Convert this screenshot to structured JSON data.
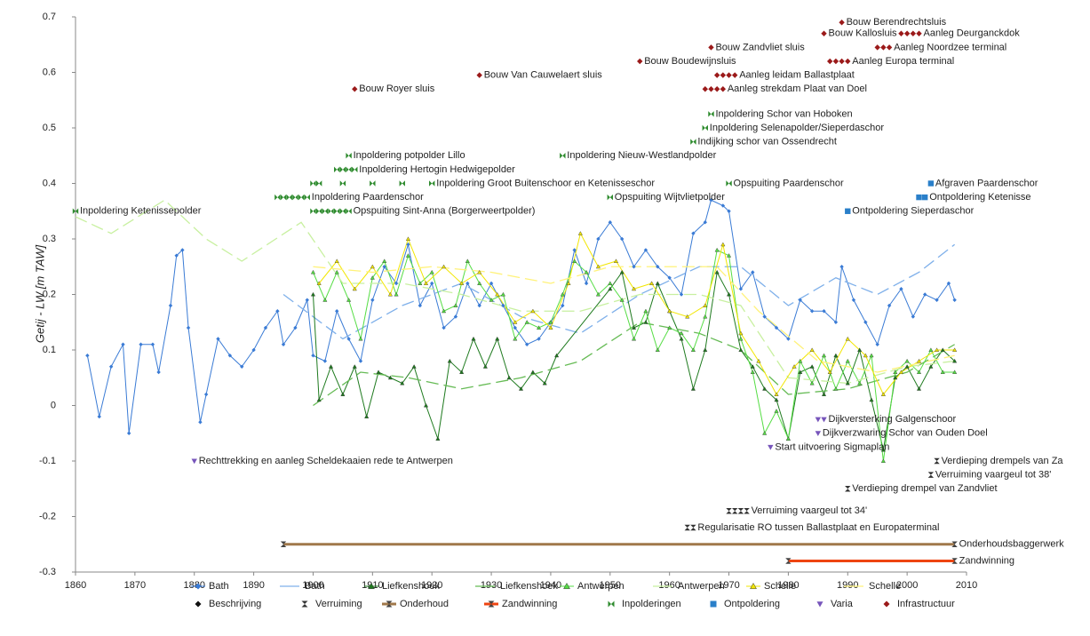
{
  "chart_data": {
    "type": "line",
    "y_label": "Getij - LW [m TAW]",
    "xlim": [
      1860,
      2010
    ],
    "xticks": [
      1860,
      1870,
      1880,
      1890,
      1900,
      1910,
      1920,
      1930,
      1940,
      1950,
      1960,
      1970,
      1980,
      1990,
      2000,
      2010
    ],
    "ylim": [
      -0.3,
      0.7
    ],
    "yticks": [
      -0.3,
      -0.2,
      -0.1,
      0,
      0.1,
      0.2,
      0.3,
      0.4,
      0.5,
      0.6,
      0.7
    ],
    "series": [
      {
        "name": "Bath",
        "color": "#3a7bd5",
        "marker": "diamond",
        "style": "points",
        "x": [
          1862,
          1864,
          1866,
          1868,
          1869,
          1871,
          1873,
          1874,
          1876,
          1877,
          1878,
          1879,
          1881,
          1882,
          1884,
          1886,
          1888,
          1890,
          1892,
          1894,
          1895,
          1897,
          1899,
          1900,
          1902,
          1904,
          1906,
          1908,
          1910,
          1912,
          1914,
          1916,
          1918,
          1920,
          1922,
          1924,
          1926,
          1928,
          1930,
          1932,
          1934,
          1936,
          1938,
          1940,
          1942,
          1944,
          1946,
          1948,
          1950,
          1952,
          1954,
          1956,
          1958,
          1960,
          1962,
          1964,
          1966,
          1967,
          1969,
          1970,
          1972,
          1974,
          1976,
          1978,
          1980,
          1982,
          1984,
          1986,
          1988,
          1989,
          1991,
          1993,
          1995,
          1997,
          1999,
          2001,
          2003,
          2005,
          2007,
          2008
        ],
        "values": [
          0.09,
          -0.02,
          0.07,
          0.11,
          -0.05,
          0.11,
          0.11,
          0.06,
          0.18,
          0.27,
          0.28,
          0.14,
          -0.03,
          0.02,
          0.12,
          0.09,
          0.07,
          0.1,
          0.14,
          0.17,
          0.11,
          0.14,
          0.19,
          0.09,
          0.08,
          0.17,
          0.12,
          0.08,
          0.19,
          0.25,
          0.22,
          0.29,
          0.18,
          0.22,
          0.14,
          0.16,
          0.22,
          0.18,
          0.22,
          0.18,
          0.14,
          0.11,
          0.12,
          0.15,
          0.18,
          0.28,
          0.22,
          0.3,
          0.33,
          0.3,
          0.25,
          0.28,
          0.25,
          0.23,
          0.2,
          0.31,
          0.33,
          0.37,
          0.36,
          0.35,
          0.21,
          0.24,
          0.16,
          0.14,
          0.12,
          0.19,
          0.17,
          0.17,
          0.15,
          0.25,
          0.19,
          0.15,
          0.11,
          0.18,
          0.21,
          0.16,
          0.2,
          0.19,
          0.22,
          0.19
        ]
      },
      {
        "name": "Bath",
        "color": "#7fb0ea",
        "style": "trend",
        "x": [
          1895,
          1905,
          1915,
          1925,
          1935,
          1945,
          1955,
          1965,
          1972,
          1980,
          1988,
          1995,
          2002,
          2008
        ],
        "values": [
          0.2,
          0.12,
          0.18,
          0.22,
          0.16,
          0.13,
          0.2,
          0.25,
          0.25,
          0.18,
          0.23,
          0.2,
          0.24,
          0.29
        ]
      },
      {
        "name": "Liefkenshoek",
        "color": "#1e7a1e",
        "marker": "triangle",
        "style": "points",
        "x": [
          1900,
          1901,
          1903,
          1905,
          1907,
          1909,
          1911,
          1913,
          1915,
          1917,
          1919,
          1921,
          1923,
          1925,
          1927,
          1929,
          1931,
          1933,
          1935,
          1937,
          1939,
          1941,
          1950,
          1952,
          1954,
          1956,
          1958,
          1960,
          1962,
          1964,
          1966,
          1968,
          1970,
          1972,
          1974,
          1976,
          1978,
          1980,
          1982,
          1984,
          1986,
          1988,
          1990,
          1992,
          1994,
          1996,
          1998,
          2000,
          2002,
          2004,
          2006,
          2008
        ],
        "values": [
          0.2,
          0.01,
          0.07,
          0.02,
          0.07,
          -0.02,
          0.06,
          0.05,
          0.04,
          0.07,
          0.0,
          -0.06,
          0.08,
          0.06,
          0.12,
          0.07,
          0.12,
          0.05,
          0.03,
          0.06,
          0.04,
          0.09,
          0.21,
          0.24,
          0.14,
          0.15,
          0.22,
          0.17,
          0.12,
          0.03,
          0.1,
          0.24,
          0.2,
          0.1,
          0.07,
          0.03,
          0.01,
          -0.06,
          0.06,
          0.07,
          0.02,
          0.09,
          0.04,
          0.1,
          0.01,
          -0.08,
          0.05,
          0.07,
          0.03,
          0.07,
          0.1,
          0.08
        ]
      },
      {
        "name": "Liefkenshoek",
        "color": "#66bb55",
        "style": "trend",
        "x": [
          1900,
          1908,
          1916,
          1925,
          1935,
          1945,
          1955,
          1965,
          1972,
          1980,
          1990,
          2000,
          2008
        ],
        "values": [
          0.0,
          0.06,
          0.05,
          0.03,
          0.05,
          0.08,
          0.15,
          0.13,
          0.1,
          0.02,
          0.03,
          0.06,
          0.11
        ]
      },
      {
        "name": "Antwerpen",
        "color": "#55dd44",
        "marker": "triangle",
        "style": "points",
        "x": [
          1900,
          1902,
          1904,
          1906,
          1908,
          1910,
          1912,
          1914,
          1916,
          1918,
          1920,
          1922,
          1924,
          1926,
          1928,
          1930,
          1932,
          1934,
          1936,
          1938,
          1940,
          1942,
          1944,
          1946,
          1948,
          1950,
          1952,
          1954,
          1956,
          1958,
          1960,
          1962,
          1964,
          1966,
          1968,
          1970,
          1972,
          1974,
          1976,
          1978,
          1980,
          1982,
          1984,
          1986,
          1988,
          1990,
          1992,
          1994,
          1996,
          1998,
          2000,
          2002,
          2004,
          2006,
          2008
        ],
        "values": [
          0.24,
          0.19,
          0.24,
          0.19,
          0.12,
          0.23,
          0.26,
          0.2,
          0.27,
          0.22,
          0.24,
          0.17,
          0.18,
          0.26,
          0.22,
          0.19,
          0.2,
          0.12,
          0.15,
          0.14,
          0.15,
          0.2,
          0.26,
          0.24,
          0.2,
          0.22,
          0.19,
          0.12,
          0.17,
          0.1,
          0.14,
          0.13,
          0.1,
          0.16,
          0.28,
          0.27,
          0.12,
          0.06,
          -0.05,
          -0.01,
          -0.06,
          0.08,
          0.04,
          0.09,
          0.03,
          0.08,
          0.04,
          0.09,
          -0.1,
          0.06,
          0.08,
          0.06,
          0.1,
          0.06,
          0.06
        ]
      },
      {
        "name": "Antwerpen",
        "color": "#c8f0a0",
        "style": "trend",
        "x": [
          1860,
          1866,
          1875,
          1882,
          1888,
          1898,
          1905,
          1915,
          1925,
          1935,
          1945,
          1955,
          1965,
          1972,
          1980,
          1990,
          2000,
          2008
        ],
        "values": [
          0.34,
          0.31,
          0.37,
          0.3,
          0.26,
          0.33,
          0.22,
          0.22,
          0.2,
          0.17,
          0.17,
          0.2,
          0.2,
          0.18,
          0.05,
          0.04,
          0.07,
          0.08
        ]
      },
      {
        "name": "Schelle",
        "color": "#f2e600",
        "marker": "triangle",
        "style": "points",
        "x": [
          1901,
          1904,
          1907,
          1910,
          1913,
          1916,
          1919,
          1922,
          1925,
          1928,
          1931,
          1934,
          1937,
          1940,
          1943,
          1945,
          1948,
          1951,
          1954,
          1957,
          1960,
          1963,
          1966,
          1969,
          1972,
          1975,
          1978,
          1981,
          1984,
          1987,
          1990,
          1993,
          1996,
          1999,
          2002,
          2005,
          2008
        ],
        "values": [
          0.22,
          0.26,
          0.21,
          0.25,
          0.2,
          0.3,
          0.22,
          0.25,
          0.22,
          0.24,
          0.2,
          0.15,
          0.17,
          0.14,
          0.22,
          0.31,
          0.25,
          0.26,
          0.21,
          0.22,
          0.17,
          0.16,
          0.18,
          0.29,
          0.13,
          0.08,
          0.02,
          0.07,
          0.1,
          0.06,
          0.12,
          0.09,
          0.02,
          0.06,
          0.08,
          0.1,
          0.1
        ]
      },
      {
        "name": "Schelle",
        "color": "#fff27a",
        "style": "trend",
        "x": [
          1900,
          1910,
          1920,
          1930,
          1940,
          1950,
          1960,
          1968,
          1975,
          1985,
          1995,
          2008
        ],
        "values": [
          0.25,
          0.24,
          0.25,
          0.24,
          0.22,
          0.25,
          0.25,
          0.25,
          0.17,
          0.08,
          0.06,
          0.09
        ]
      }
    ],
    "event_groups": [
      {
        "name": "Beschrijving",
        "color": "#111111",
        "marker": "diamond",
        "items": []
      },
      {
        "name": "Verruiming",
        "color": "#333333",
        "marker": "hourglass",
        "items": [
          {
            "label": "Verdieping drempels van Za",
            "x": [
              2005
            ],
            "y": -0.1
          },
          {
            "label": "Verruiming vaargeul tot 38'",
            "x": [
              2004
            ],
            "y": -0.125
          },
          {
            "label": "Verdieping drempel van Zandvliet",
            "x": [
              1990
            ],
            "y": -0.15
          },
          {
            "label": "Verruiming vaargeul tot 34'",
            "x": [
              1970,
              1971,
              1972,
              1973
            ],
            "y": -0.19
          },
          {
            "label": "Regularisatie RO tussen Ballastplaat en Europaterminal",
            "x": [
              1963,
              1964
            ],
            "y": -0.22
          }
        ]
      },
      {
        "name": "Onderhoud",
        "color": "#a0784a",
        "marker": "hourglass",
        "connect": true,
        "items": [
          {
            "label": "Onderhoudsbaggerwerk",
            "x": [
              1895,
              2008
            ],
            "y": -0.25
          }
        ]
      },
      {
        "name": "Zandwinning",
        "color": "#ee4411",
        "marker": "hourglass",
        "connect": true,
        "items": [
          {
            "label": "Zandwinning",
            "x": [
              1980,
              2008
            ],
            "y": -0.28
          }
        ]
      },
      {
        "name": "Inpolderingen",
        "color": "#2e8b2e",
        "marker": "bowtie",
        "items": [
          {
            "label": "Inpoldering Schor van Hoboken",
            "x": [
              1967
            ],
            "y": 0.525
          },
          {
            "label": "Inpoldering Selenapolder/Sieperdaschor",
            "x": [
              1966
            ],
            "y": 0.5
          },
          {
            "label": "Indijking schor van Ossendrecht",
            "x": [
              1964
            ],
            "y": 0.475
          },
          {
            "label": "Inpoldering potpolder Lillo",
            "x": [
              1906
            ],
            "y": 0.45
          },
          {
            "label": "Inpoldering Nieuw-Westlandpolder",
            "x": [
              1942
            ],
            "y": 0.45
          },
          {
            "label": "Inpoldering Hertogin Hedwigepolder",
            "x": [
              1904,
              1905,
              1906,
              1907
            ],
            "y": 0.425
          },
          {
            "label": "Inpoldering Groot Buitenschoor en Ketenisseschor",
            "x": [
              1900,
              1901,
              1905,
              1910,
              1915,
              1920
            ],
            "y": 0.4
          },
          {
            "label": "Opspuiting Paardenschor",
            "x": [
              1970
            ],
            "y": 0.4
          },
          {
            "label": "Inpoldering Paardenschor",
            "x": [
              1894,
              1895,
              1896,
              1897,
              1898,
              1899
            ],
            "y": 0.375
          },
          {
            "label": "Opspuiting Wijtvlietpolder",
            "x": [
              1950
            ],
            "y": 0.375
          },
          {
            "label": "Inpoldering Ketenissepolder",
            "x": [
              1860
            ],
            "y": 0.35
          },
          {
            "label": "Opspuiting Sint-Anna (Borgerweertpolder)",
            "x": [
              1900,
              1901,
              1902,
              1903,
              1904,
              1905,
              1906
            ],
            "y": 0.35
          }
        ]
      },
      {
        "name": "Ontpoldering",
        "color": "#2a7fc9",
        "marker": "square",
        "items": [
          {
            "label": "Afgraven Paardenschor",
            "x": [
              2004
            ],
            "y": 0.4
          },
          {
            "label": "Ontpoldering Ketenisse",
            "x": [
              2002,
              2003
            ],
            "y": 0.375
          },
          {
            "label": "Ontpoldering Sieperdaschor",
            "x": [
              1990
            ],
            "y": 0.35
          }
        ]
      },
      {
        "name": "Varia",
        "color": "#7755bb",
        "marker": "tridown",
        "items": [
          {
            "label": "Dijkversterking Galgenschoor",
            "x": [
              1985,
              1986
            ],
            "y": -0.025
          },
          {
            "label": "Dijkverzwaring Schor van Ouden Doel",
            "x": [
              1985
            ],
            "y": -0.05
          },
          {
            "label": "Start uitvoering Sigmaplan",
            "x": [
              1977
            ],
            "y": -0.075
          },
          {
            "label": "Rechttrekking en aanleg Scheldekaaien rede te Antwerpen",
            "x": [
              1880
            ],
            "y": -0.1
          }
        ]
      },
      {
        "name": "Infrastructuur",
        "color": "#9b1a1a",
        "marker": "diamond",
        "items": [
          {
            "label": "Bouw Berendrechtsluis",
            "x": [
              1989
            ],
            "y": 0.69
          },
          {
            "label": "Bouw Kallosluis",
            "x": [
              1986
            ],
            "y": 0.67
          },
          {
            "label": "Aanleg Deurganckdok",
            "x": [
              1999,
              2000,
              2001,
              2002
            ],
            "y": 0.67
          },
          {
            "label": "Bouw Zandvliet sluis",
            "x": [
              1967
            ],
            "y": 0.645
          },
          {
            "label": "Aanleg Noordzee terminal",
            "x": [
              1995,
              1996,
              1997
            ],
            "y": 0.645
          },
          {
            "label": "Bouw Boudewijnsluis",
            "x": [
              1955
            ],
            "y": 0.62
          },
          {
            "label": "Aanleg Europa terminal",
            "x": [
              1987,
              1988,
              1989,
              1990
            ],
            "y": 0.62
          },
          {
            "label": "Bouw Van Cauwelaert sluis",
            "x": [
              1928
            ],
            "y": 0.595
          },
          {
            "label": "Aanleg leidam Ballastplaat",
            "x": [
              1968,
              1969,
              1970,
              1971
            ],
            "y": 0.595
          },
          {
            "label": "Bouw Royer sluis",
            "x": [
              1907
            ],
            "y": 0.57
          },
          {
            "label": "Aanleg strekdam Plaat van Doel",
            "x": [
              1966,
              1967,
              1968,
              1969
            ],
            "y": 0.57
          }
        ]
      }
    ]
  }
}
